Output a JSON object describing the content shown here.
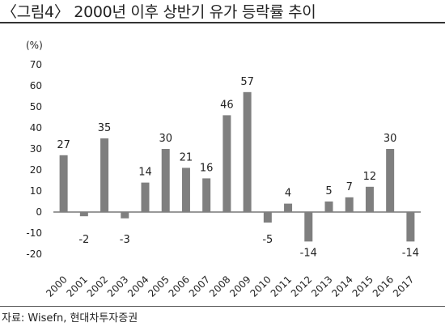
{
  "header": {
    "title": "〈그림4〉 2000년 이후 상반기 유가 등락률 추이"
  },
  "footer": {
    "source": "자료: Wisefn, 현대차투자증권"
  },
  "chart_data": {
    "type": "bar",
    "unit_label": "(%)",
    "categories": [
      "2000",
      "2001",
      "2002",
      "2003",
      "2004",
      "2005",
      "2006",
      "2007",
      "2008",
      "2009",
      "2010",
      "2011",
      "2012",
      "2013",
      "2014",
      "2015",
      "2016",
      "2017"
    ],
    "values": [
      27,
      -2,
      35,
      -3,
      14,
      30,
      21,
      16,
      46,
      57,
      -5,
      4,
      -14,
      5,
      7,
      12,
      30,
      -14
    ],
    "data_labels": [
      "27",
      "-2",
      "35",
      "-3",
      "14",
      "30",
      "21",
      "16",
      "46",
      "57",
      "-5",
      "4",
      "-14",
      "5",
      "7",
      "12",
      "30",
      "-14"
    ],
    "ylim": [
      -20,
      70
    ],
    "yticks": [
      -20,
      -10,
      0,
      10,
      20,
      30,
      40,
      50,
      60,
      70
    ],
    "ytick_labels": [
      "-20",
      "-10",
      "0",
      "10",
      "20",
      "30",
      "40",
      "50",
      "60",
      "70"
    ],
    "bar_color": "#7f7f7f",
    "grid": false,
    "legend": "none"
  }
}
